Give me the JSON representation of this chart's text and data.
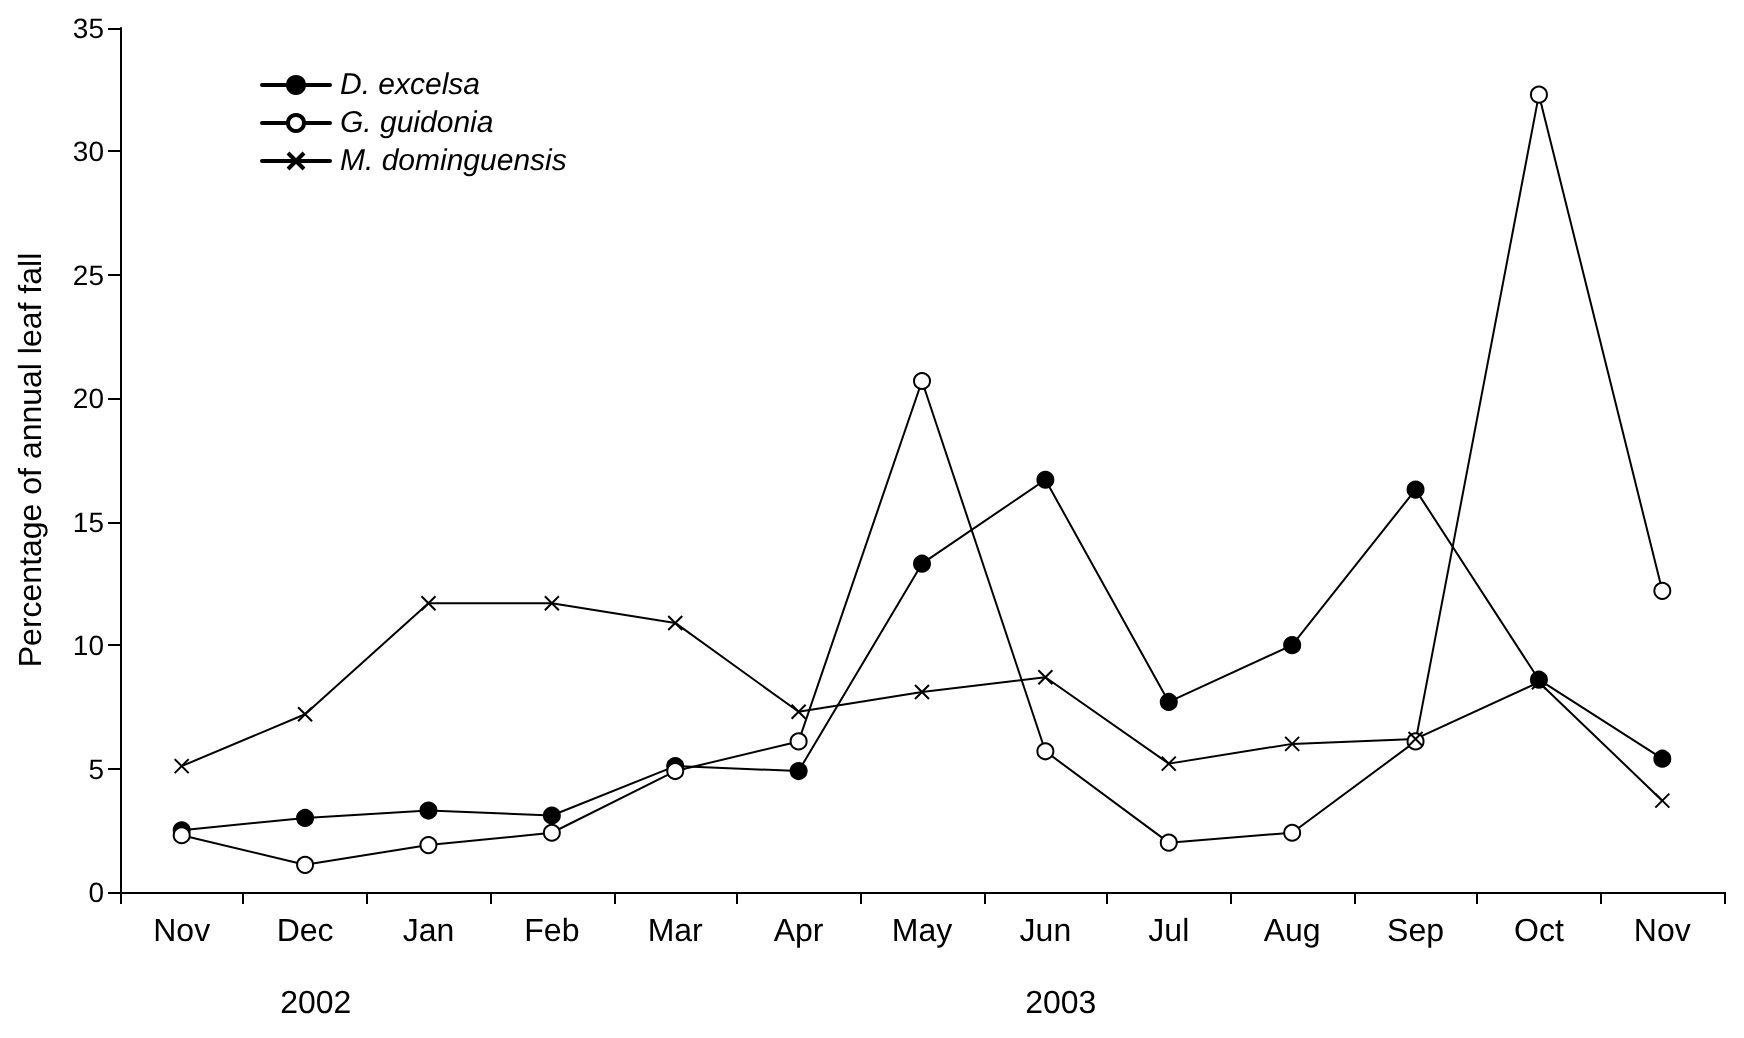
{
  "chart_data": {
    "type": "line",
    "ylabel": "Percentage of annual leaf fall",
    "categories": [
      "Nov",
      "Dec",
      "Jan",
      "Feb",
      "Mar",
      "Apr",
      "May",
      "Jun",
      "Jul",
      "Aug",
      "Sep",
      "Oct",
      "Nov"
    ],
    "series": [
      {
        "name": "D. excelsa",
        "color": "#000000",
        "marker": "circle",
        "values": [
          2.5,
          3.0,
          3.3,
          3.1,
          5.1,
          4.9,
          13.3,
          16.7,
          7.7,
          10.0,
          16.3,
          8.6,
          5.4
        ]
      },
      {
        "name": "G. guidonia",
        "color": "#000000",
        "marker": "circle",
        "values": [
          2.3,
          1.1,
          1.9,
          2.4,
          4.9,
          6.1,
          20.7,
          5.7,
          2.0,
          2.4,
          6.1,
          32.3,
          12.2
        ]
      },
      {
        "name": "M. dominguensis",
        "color": "#000000",
        "marker": "cross",
        "values": [
          5.1,
          7.2,
          11.7,
          11.7,
          10.9,
          7.3,
          8.1,
          8.7,
          5.2,
          6.0,
          6.2,
          8.5,
          3.7
        ]
      }
    ],
    "annotations": [
      "2002",
      "2003"
    ],
    "ylim": [
      0,
      35
    ],
    "yticks": [
      0,
      5,
      10,
      15,
      20,
      25,
      30,
      35
    ],
    "grid": false,
    "legend": "top left",
    "line_style": "solid"
  }
}
